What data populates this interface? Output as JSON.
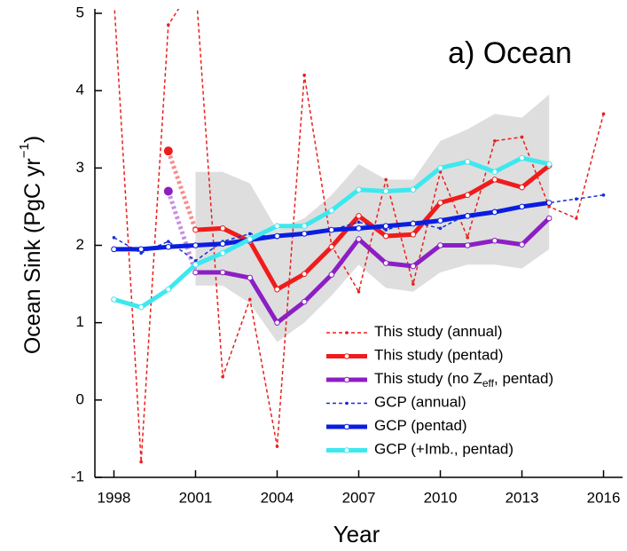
{
  "chart_data": {
    "type": "line",
    "title": "a) Ocean",
    "x_label": "Year",
    "y_label": {
      "text": "Ocean Sink (PgC yr",
      "superscript": "−1",
      "suffix": ")"
    },
    "xlim": [
      1997.3,
      2016.7
    ],
    "ylim": [
      -1,
      5
    ],
    "xticks": [
      1998,
      2001,
      2004,
      2007,
      2010,
      2013,
      2016
    ],
    "yticks": [
      -1,
      0,
      1,
      2,
      3,
      4,
      5
    ],
    "band": {
      "color": "#dedede",
      "x": [
        2001,
        2002,
        2003,
        2004,
        2005,
        2006,
        2007,
        2008,
        2009,
        2010,
        2011,
        2012,
        2013,
        2014
      ],
      "lower": [
        1.48,
        1.48,
        1.25,
        0.75,
        1.0,
        1.35,
        1.75,
        1.45,
        1.4,
        1.65,
        1.75,
        1.75,
        1.7,
        1.95
      ],
      "upper": [
        2.95,
        2.95,
        2.8,
        2.2,
        2.35,
        2.65,
        3.05,
        2.85,
        2.85,
        3.35,
        3.5,
        3.7,
        3.65,
        3.95
      ]
    },
    "series": [
      {
        "name": "This study (annual)",
        "color": "#e8201c",
        "style": "dashed",
        "x": [
          1998,
          1999,
          2000,
          2001,
          2002,
          2003,
          2004,
          2005,
          2006,
          2007,
          2008,
          2009,
          2010,
          2011,
          2012,
          2013,
          2014,
          2015,
          2016
        ],
        "values": [
          5.2,
          -0.8,
          4.85,
          5.4,
          0.3,
          1.3,
          -0.6,
          4.2,
          2.0,
          1.4,
          2.85,
          1.5,
          2.95,
          2.1,
          3.35,
          3.4,
          2.5,
          2.35,
          3.7
        ]
      },
      {
        "name": "This study (pentad)",
        "color": "#f01c1c",
        "style": "thick",
        "dotted_first": true,
        "x": [
          2000,
          2001,
          2002,
          2003,
          2004,
          2005,
          2006,
          2007,
          2008,
          2009,
          2010,
          2011,
          2012,
          2013,
          2014
        ],
        "values": [
          3.22,
          2.2,
          2.22,
          2.05,
          1.43,
          1.63,
          1.98,
          2.38,
          2.12,
          2.14,
          2.55,
          2.65,
          2.85,
          2.75,
          3.03
        ]
      },
      {
        "name": "This study (no Z",
        "name_sub": "eff",
        "name_end": ", pentad)",
        "color": "#8c1fc4",
        "style": "thick",
        "dotted_first": true,
        "x": [
          2000,
          2001,
          2002,
          2003,
          2004,
          2005,
          2006,
          2007,
          2008,
          2009,
          2010,
          2011,
          2012,
          2013,
          2014
        ],
        "values": [
          2.7,
          1.65,
          1.65,
          1.58,
          1.0,
          1.27,
          1.62,
          2.08,
          1.77,
          1.73,
          2.0,
          2.0,
          2.06,
          2.01,
          2.35
        ]
      },
      {
        "name": "GCP (annual)",
        "color": "#1a2fd6",
        "style": "dashed",
        "x": [
          1998,
          1999,
          2000,
          2001,
          2002,
          2003,
          2004,
          2005,
          2006,
          2007,
          2008,
          2009,
          2010,
          2011,
          2012,
          2013,
          2014,
          2015,
          2016
        ],
        "values": [
          2.1,
          1.9,
          2.05,
          1.8,
          2.05,
          2.15,
          2.1,
          2.15,
          2.2,
          2.3,
          2.2,
          2.3,
          2.22,
          2.4,
          2.45,
          2.5,
          2.55,
          2.6,
          2.65
        ]
      },
      {
        "name": "GCP (pentad)",
        "color": "#0a1ee0",
        "style": "thick",
        "x": [
          1998,
          1999,
          2000,
          2001,
          2002,
          2003,
          2004,
          2005,
          2006,
          2007,
          2008,
          2009,
          2010,
          2011,
          2012,
          2013,
          2014
        ],
        "values": [
          1.95,
          1.95,
          1.98,
          2.0,
          2.02,
          2.07,
          2.12,
          2.15,
          2.2,
          2.22,
          2.25,
          2.28,
          2.32,
          2.38,
          2.43,
          2.5,
          2.55
        ]
      },
      {
        "name": "GCP (+Imb., pentad)",
        "color": "#3de8ef",
        "style": "thick",
        "x": [
          1998,
          1999,
          2000,
          2001,
          2002,
          2003,
          2004,
          2005,
          2006,
          2007,
          2008,
          2009,
          2010,
          2011,
          2012,
          2013,
          2014
        ],
        "values": [
          1.3,
          1.2,
          1.43,
          1.75,
          1.9,
          2.08,
          2.25,
          2.25,
          2.45,
          2.72,
          2.7,
          2.72,
          3.0,
          3.08,
          2.95,
          3.13,
          3.05
        ]
      }
    ]
  }
}
